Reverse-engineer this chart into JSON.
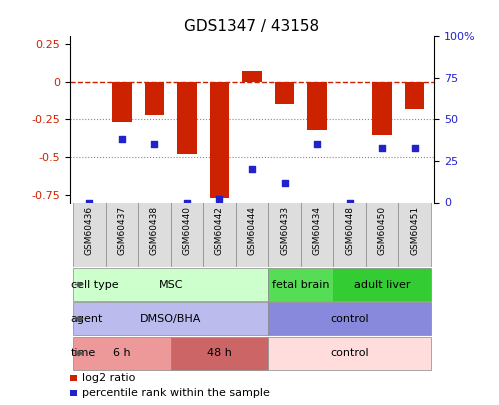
{
  "title": "GDS1347 / 43158",
  "samples": [
    "GSM60436",
    "GSM60437",
    "GSM60438",
    "GSM60440",
    "GSM60442",
    "GSM60444",
    "GSM60433",
    "GSM60434",
    "GSM60448",
    "GSM60450",
    "GSM60451"
  ],
  "log2_ratio": [
    0.0,
    -0.27,
    -0.22,
    -0.48,
    -0.77,
    0.07,
    -0.15,
    -0.32,
    0.0,
    -0.35,
    -0.18
  ],
  "pct_rank": [
    0.0,
    38,
    35,
    0.0,
    2,
    20,
    12,
    35,
    0.0,
    33,
    33
  ],
  "bar_color": "#cc2200",
  "dot_color": "#2222cc",
  "dashed_line_color": "#cc2200",
  "ylim_left": [
    -0.8,
    0.3
  ],
  "ylim_right": [
    0,
    100
  ],
  "yticks_left": [
    0.25,
    0,
    -0.25,
    -0.5,
    -0.75
  ],
  "ytick_labels_left": [
    "0.25",
    "0",
    "-0.25",
    "-0.5",
    "-0.75"
  ],
  "yticks_right": [
    100,
    75,
    50,
    25,
    0
  ],
  "ytick_labels_right": [
    "100%",
    "75",
    "50",
    "25",
    "0"
  ],
  "cell_type_groups": [
    {
      "label": "MSC",
      "start": 0,
      "end": 5,
      "color": "#ccffcc"
    },
    {
      "label": "fetal brain",
      "start": 6,
      "end": 7,
      "color": "#55dd55"
    },
    {
      "label": "adult liver",
      "start": 8,
      "end": 10,
      "color": "#33cc33"
    }
  ],
  "agent_groups": [
    {
      "label": "DMSO/BHA",
      "start": 0,
      "end": 5,
      "color": "#bbbbee"
    },
    {
      "label": "control",
      "start": 6,
      "end": 10,
      "color": "#8888dd"
    }
  ],
  "time_groups": [
    {
      "label": "6 h",
      "start": 0,
      "end": 2,
      "color": "#ee9999"
    },
    {
      "label": "48 h",
      "start": 3,
      "end": 5,
      "color": "#cc6666"
    },
    {
      "label": "control",
      "start": 6,
      "end": 10,
      "color": "#ffdddd"
    }
  ],
  "row_labels": [
    "cell type",
    "agent",
    "time"
  ],
  "legend_items": [
    {
      "color": "#cc2200",
      "label": "log2 ratio"
    },
    {
      "color": "#2222cc",
      "label": "percentile rank within the sample"
    }
  ],
  "xlabel_bg": "#dddddd",
  "xlabel_border": "#888888"
}
